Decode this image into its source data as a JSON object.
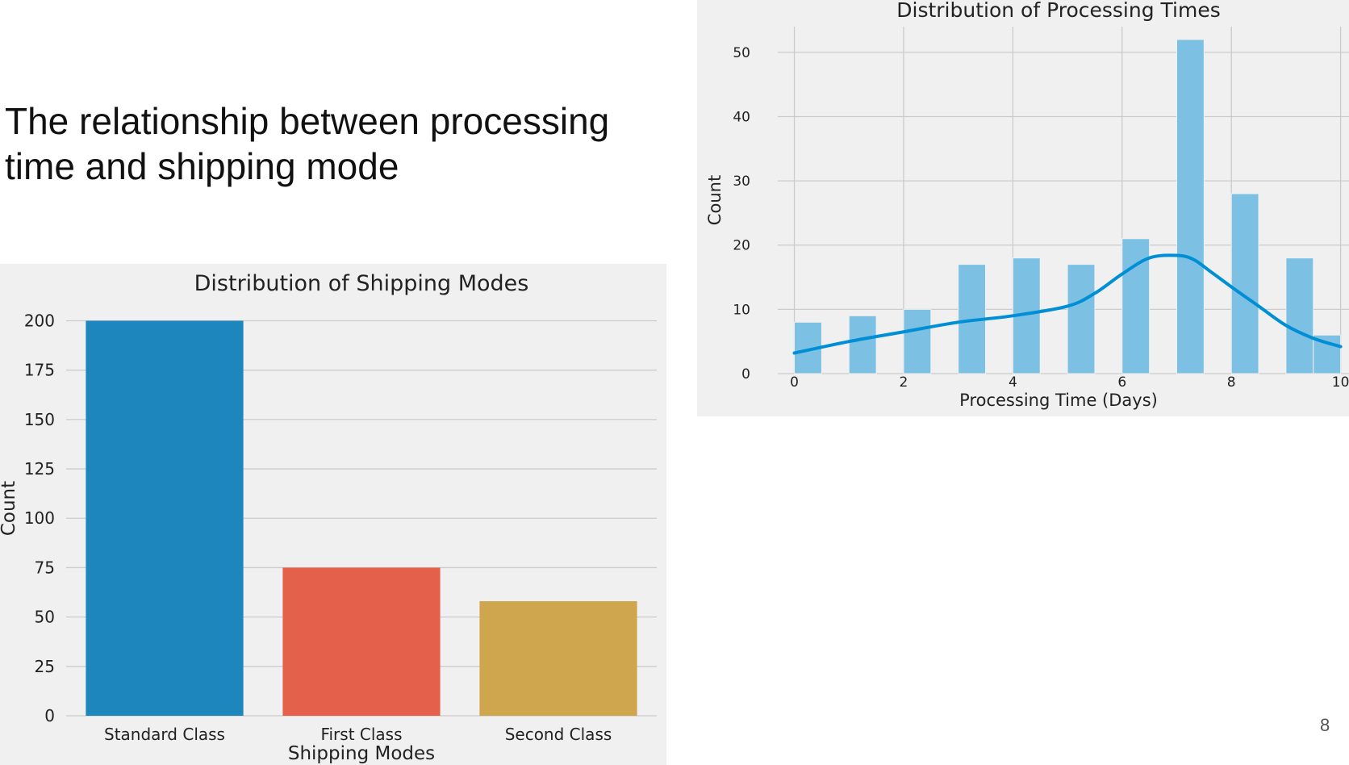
{
  "slide": {
    "title": "The relationship between processing time and shipping mode",
    "page_number": "8"
  },
  "colors": {
    "panel_bg": "#f0f0f0",
    "grid": "#cbcbcb",
    "text": "#222222",
    "hist_bar": "#7cc0e4",
    "kde_line": "#008fd5"
  },
  "chart_data": [
    {
      "id": "shipping",
      "type": "bar",
      "title": "Distribution of Shipping Modes",
      "xlabel": "Shipping Modes",
      "ylabel": "Count",
      "categories": [
        "Standard Class",
        "First Class",
        "Second Class"
      ],
      "values": [
        200,
        75,
        58
      ],
      "colors": [
        "#1c86bd",
        "#e5604a",
        "#cfa54e"
      ],
      "ylim": [
        0,
        210
      ],
      "yticks": [
        0,
        25,
        50,
        75,
        100,
        125,
        150,
        175,
        200
      ],
      "grid": true,
      "legend": "none"
    },
    {
      "id": "processing",
      "type": "bar",
      "title": "Distribution of Processing Times",
      "xlabel": "Processing Time (Days)",
      "ylabel": "Count",
      "bins": [
        {
          "x0": 0.0,
          "x1": 0.5,
          "count": 8
        },
        {
          "x0": 1.0,
          "x1": 1.5,
          "count": 9
        },
        {
          "x0": 2.0,
          "x1": 2.5,
          "count": 10
        },
        {
          "x0": 3.0,
          "x1": 3.5,
          "count": 17
        },
        {
          "x0": 4.0,
          "x1": 4.5,
          "count": 18
        },
        {
          "x0": 5.0,
          "x1": 5.5,
          "count": 17
        },
        {
          "x0": 6.0,
          "x1": 6.5,
          "count": 21
        },
        {
          "x0": 7.0,
          "x1": 7.5,
          "count": 52
        },
        {
          "x0": 8.0,
          "x1": 8.5,
          "count": 28
        },
        {
          "x0": 9.0,
          "x1": 9.5,
          "count": 18
        },
        {
          "x0": 9.5,
          "x1": 10.0,
          "count": 6
        }
      ],
      "kde": {
        "x": [
          0,
          1,
          2,
          3,
          4,
          5,
          5.5,
          6,
          6.5,
          7,
          7.3,
          7.6,
          8,
          8.5,
          9,
          9.5,
          10
        ],
        "y": [
          3.2,
          5.0,
          6.5,
          8.0,
          9.0,
          10.5,
          12.5,
          15.5,
          18.0,
          18.4,
          17.8,
          16.0,
          13.5,
          10.5,
          7.5,
          5.5,
          4.2
        ]
      },
      "xlim": [
        -0.2,
        10.05
      ],
      "ylim": [
        0,
        54
      ],
      "xticks": [
        0,
        2,
        4,
        6,
        8,
        10
      ],
      "yticks": [
        0,
        10,
        20,
        30,
        40,
        50
      ],
      "grid": true,
      "legend": "none"
    }
  ]
}
